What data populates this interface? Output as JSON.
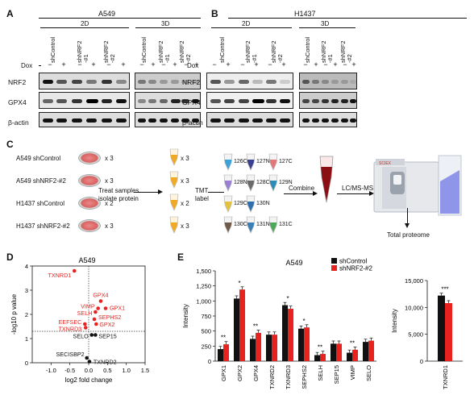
{
  "panels": {
    "A": "A",
    "B": "B",
    "C": "C",
    "D": "D",
    "E": "E"
  },
  "panelA": {
    "cell_line": "A549",
    "cond_2d": "2D",
    "cond_3d": "3D",
    "lanes": [
      "shControl",
      "shNRF2\n-#1",
      "shNRF2\n-#2"
    ],
    "dox_label": "Dox",
    "dox_signs": [
      "−",
      "+",
      "−",
      "+",
      "−",
      "+"
    ],
    "proteins": [
      "NRF2",
      "GPX4",
      "β-actin"
    ]
  },
  "panelB": {
    "cell_line": "H1437",
    "cond_2d": "2D",
    "cond_3d": "3D",
    "lanes": [
      "shControl",
      "shNRF2\n-#1",
      "shNRF2\n-#2"
    ],
    "dox_label": "Dox",
    "dox_signs": [
      "−",
      "+",
      "−",
      "+",
      "−",
      "+"
    ],
    "proteins": [
      "NRF2",
      "GPX4",
      "β-actin"
    ]
  },
  "panelC": {
    "samples": [
      {
        "name": "A549 shControl",
        "mult": "x 3"
      },
      {
        "name": "A549 shNRF2-#2",
        "mult": "x 3"
      },
      {
        "name": "H1437 shControl",
        "mult": "x 2"
      },
      {
        "name": "H1437 shNRF2-#2",
        "mult": "x 3"
      }
    ],
    "step1": "Treat samples\nisolate protein",
    "tube_mults": [
      "x 3",
      "x 3",
      "x 2",
      "x 3"
    ],
    "step2": "TMT\nlabel",
    "tmt_labels": [
      "126C",
      "127N",
      "127C",
      "128N",
      "128C",
      "129N",
      "129C",
      "130N",
      "",
      "130C",
      "131N",
      "131C"
    ],
    "step3": "Combine",
    "step4": "LC/MS-MS",
    "result": "Total proteome",
    "instrument_logo": "SCIEX"
  },
  "panelD": {
    "title": "A549",
    "xlabel": "log2 fold change",
    "ylabel": "-log10 p value"
  },
  "panelE": {
    "title": "A549",
    "ylabel": "Intensity",
    "legend": [
      "shControl",
      "shNRF2-#2"
    ]
  },
  "chart_data": [
    {
      "type": "scatter",
      "title": "A549",
      "xlabel": "log2 fold change",
      "ylabel": "-log10 p value",
      "xlim": [
        -1.5,
        1.5
      ],
      "ylim": [
        0,
        4
      ],
      "xticks": [
        -1.0,
        -0.5,
        0,
        0.5,
        1.0,
        1.5
      ],
      "yticks": [
        0,
        1,
        2,
        3,
        4
      ],
      "threshold_y": 1.3,
      "threshold_x": 0,
      "points": [
        {
          "label": "TXNRD1",
          "x": -0.38,
          "y": 3.8,
          "sig": true
        },
        {
          "label": "GPX4",
          "x": 0.32,
          "y": 2.55,
          "sig": true
        },
        {
          "label": "VIMP",
          "x": 0.25,
          "y": 2.25,
          "sig": true
        },
        {
          "label": "GPX1",
          "x": 0.45,
          "y": 2.25,
          "sig": true
        },
        {
          "label": "SELH",
          "x": 0.18,
          "y": 2.1,
          "sig": true
        },
        {
          "label": "SEPHS2",
          "x": 0.15,
          "y": 1.8,
          "sig": true
        },
        {
          "label": "GPX2",
          "x": 0.2,
          "y": 1.6,
          "sig": true
        },
        {
          "label": "EEFSEC",
          "x": -0.1,
          "y": 1.6,
          "sig": true
        },
        {
          "label": "TXNRD3",
          "x": -0.08,
          "y": 1.45,
          "sig": true
        },
        {
          "label": "SELO",
          "x": 0.08,
          "y": 1.15,
          "sig": false
        },
        {
          "label": "SEP15",
          "x": 0.18,
          "y": 1.15,
          "sig": false
        },
        {
          "label": "SECISBP2",
          "x": -0.05,
          "y": 0.2,
          "sig": false
        },
        {
          "label": "TXNRD2",
          "x": 0.02,
          "y": 0.05,
          "sig": false
        }
      ],
      "colors": {
        "sig": "#e8231f",
        "nonsig": "#111111"
      }
    },
    {
      "type": "bar",
      "title": "A549",
      "ylabel": "Intensity",
      "ylim": [
        0,
        1500
      ],
      "yticks": [
        0,
        250,
        500,
        750,
        1000,
        1250,
        1500
      ],
      "categories": [
        "GPX1",
        "GPX2",
        "GPX4",
        "TXNRD2",
        "TXNRD3",
        "SEPHS2",
        "SELH",
        "SEP15",
        "VIMP",
        "SELO"
      ],
      "series": [
        {
          "name": "shControl",
          "color": "#111111",
          "values": [
            200,
            1040,
            370,
            440,
            930,
            540,
            100,
            290,
            140,
            320
          ]
        },
        {
          "name": "shNRF2-#2",
          "color": "#e8231f",
          "values": [
            280,
            1190,
            470,
            440,
            870,
            560,
            120,
            290,
            190,
            340
          ]
        }
      ],
      "significance": [
        "**",
        "*",
        "**",
        "",
        "*",
        "*",
        "**",
        "",
        "**",
        ""
      ]
    },
    {
      "type": "bar",
      "ylabel": "Intensity",
      "ylim": [
        0,
        15000
      ],
      "yticks": [
        0,
        5000,
        10000,
        15000
      ],
      "ytick_labels": [
        "0",
        "5,000",
        "10,000",
        "15,000"
      ],
      "categories": [
        "TXNRD1"
      ],
      "series": [
        {
          "name": "shControl",
          "color": "#111111",
          "values": [
            12200
          ]
        },
        {
          "name": "shNRF2-#2",
          "color": "#e8231f",
          "values": [
            10800
          ]
        }
      ],
      "significance": [
        "***"
      ]
    }
  ]
}
